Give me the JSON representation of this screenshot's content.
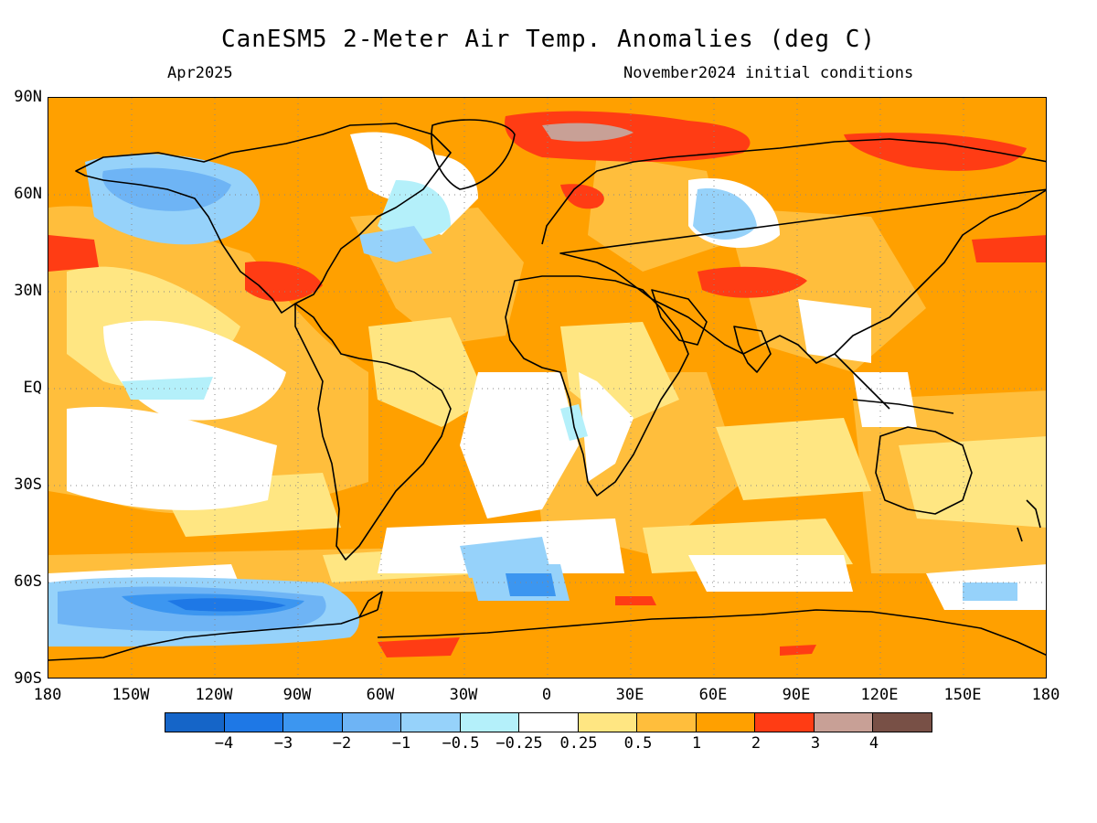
{
  "title": "CanESM5 2-Meter Air Temp. Anomalies (deg C)",
  "subtitle_left": "Apr2025",
  "subtitle_right": "November2024 initial conditions",
  "lat_labels": [
    "90N",
    "60N",
    "30N",
    "EQ",
    "30S",
    "60S",
    "90S"
  ],
  "lon_labels": [
    "180",
    "150W",
    "120W",
    "90W",
    "60W",
    "30W",
    "0",
    "30E",
    "60E",
    "90E",
    "120E",
    "150E",
    "180"
  ],
  "colorbar": {
    "colors": [
      "#1565c8",
      "#1e78e6",
      "#3c96f0",
      "#6eb4f5",
      "#96d2fa",
      "#b4f0fa",
      "#ffffff",
      "#ffe682",
      "#ffbe3c",
      "#ffa000",
      "#ff3c14",
      "#c8a096",
      "#785046"
    ],
    "labels": [
      "−4",
      "−3",
      "−2",
      "−1",
      "−0.5",
      "−0.25",
      "0.25",
      "0.5",
      "1",
      "2",
      "3",
      "4"
    ]
  },
  "colors": {
    "ocean_base": "#ffa000",
    "land_outline": "#000000"
  }
}
